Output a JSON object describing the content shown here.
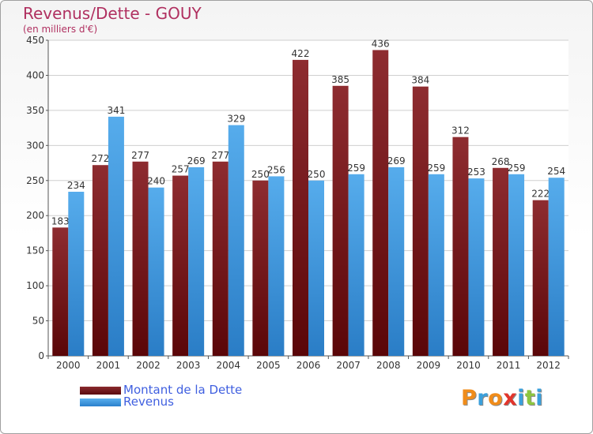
{
  "colors": {
    "dette": "#7a1a1e",
    "revenus": "#3b93dd",
    "title": "#b03060",
    "legend_text": "#4060e0"
  },
  "chart_data": {
    "type": "bar",
    "title": "Revenus/Dette - GOUY",
    "subtitle": "(en milliers d'€)",
    "categories": [
      "2000",
      "2001",
      "2002",
      "2003",
      "2004",
      "2005",
      "2006",
      "2007",
      "2008",
      "2009",
      "2010",
      "2011",
      "2012"
    ],
    "series": [
      {
        "name": "Montant de la Dette",
        "values": [
          183,
          272,
          277,
          257,
          277,
          250,
          422,
          385,
          436,
          384,
          312,
          268,
          222
        ]
      },
      {
        "name": "Revenus",
        "values": [
          234,
          341,
          240,
          269,
          329,
          256,
          250,
          259,
          269,
          259,
          253,
          259,
          254
        ]
      }
    ],
    "ylim": [
      0,
      450
    ],
    "yticks": [
      0,
      50,
      100,
      150,
      200,
      250,
      300,
      350,
      400,
      450
    ],
    "grid": true,
    "legend": "bottom-left"
  },
  "logo": {
    "letters": [
      "P",
      "r",
      "o",
      "x",
      "i",
      "t",
      "i"
    ],
    "colors": [
      "#f08c1a",
      "#3aa0dc",
      "#f08c1a",
      "#e2352c",
      "#3aa0dc",
      "#8cc63f",
      "#3aa0dc"
    ]
  }
}
